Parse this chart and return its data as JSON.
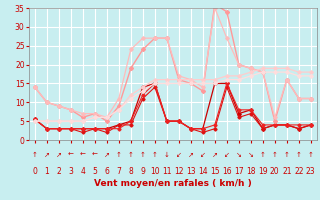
{
  "bg_color": "#c8eef0",
  "grid_color": "#ffffff",
  "xlabel": "Vent moyen/en rafales ( km/h )",
  "xlim": [
    -0.5,
    23.5
  ],
  "ylim": [
    0,
    35
  ],
  "yticks": [
    0,
    5,
    10,
    15,
    20,
    25,
    30,
    35
  ],
  "xticks": [
    0,
    1,
    2,
    3,
    4,
    5,
    6,
    7,
    8,
    9,
    10,
    11,
    12,
    13,
    14,
    15,
    16,
    17,
    18,
    19,
    20,
    21,
    22,
    23
  ],
  "lines": [
    {
      "x": [
        0,
        1,
        2,
        3,
        4,
        5,
        6,
        7,
        8,
        9,
        10,
        11,
        12,
        13,
        14,
        15,
        16,
        17,
        18,
        19,
        20,
        21,
        22,
        23
      ],
      "y": [
        5.5,
        3,
        3,
        3,
        3,
        3,
        3,
        4,
        5,
        14,
        15,
        5,
        5,
        3,
        3,
        15,
        15,
        7,
        8,
        3,
        4,
        4,
        3,
        4
      ],
      "color": "#cc0000",
      "lw": 0.9,
      "marker": "D",
      "ms": 1.8
    },
    {
      "x": [
        0,
        1,
        2,
        3,
        4,
        5,
        6,
        7,
        8,
        9,
        10,
        11,
        12,
        13,
        14,
        15,
        16,
        17,
        18,
        19,
        20,
        21,
        22,
        23
      ],
      "y": [
        5.5,
        3,
        3,
        3,
        2,
        3,
        2,
        4,
        4,
        11,
        14,
        5,
        5,
        3,
        2,
        3,
        14,
        6,
        7,
        3,
        4,
        4,
        3,
        4
      ],
      "color": "#dd1111",
      "lw": 0.8,
      "marker": "D",
      "ms": 1.6
    },
    {
      "x": [
        0,
        1,
        2,
        3,
        4,
        5,
        6,
        7,
        8,
        9,
        10,
        11,
        12,
        13,
        14,
        15,
        16,
        17,
        18,
        19,
        20,
        21,
        22,
        23
      ],
      "y": [
        5.5,
        3,
        3,
        3,
        3,
        3,
        3,
        3,
        5,
        12,
        15,
        5,
        5,
        3,
        3,
        4,
        15,
        8,
        8,
        4,
        4,
        4,
        4,
        4
      ],
      "color": "#ee2222",
      "lw": 0.8,
      "marker": "D",
      "ms": 1.6
    },
    {
      "x": [
        0,
        1,
        2,
        3,
        4,
        5,
        6,
        7,
        8,
        9,
        10,
        11,
        12,
        13,
        14,
        15,
        16,
        17,
        18,
        19,
        20,
        21,
        22,
        23
      ],
      "y": [
        14,
        10,
        9,
        8,
        6,
        7,
        5,
        9,
        19,
        24,
        27,
        27,
        16,
        15,
        13,
        36,
        34,
        20,
        19,
        18,
        5,
        16,
        11,
        11
      ],
      "color": "#ff9999",
      "lw": 1.0,
      "marker": "D",
      "ms": 2.0
    },
    {
      "x": [
        0,
        1,
        2,
        3,
        4,
        5,
        6,
        7,
        8,
        9,
        10,
        11,
        12,
        13,
        14,
        15,
        16,
        17,
        18,
        19,
        20,
        21,
        22,
        23
      ],
      "y": [
        14,
        10,
        9,
        8,
        7,
        7,
        6,
        11,
        24,
        27,
        27,
        27,
        17,
        16,
        14,
        35,
        27,
        20,
        19,
        18,
        6,
        16,
        11,
        11
      ],
      "color": "#ffbbbb",
      "lw": 0.9,
      "marker": "D",
      "ms": 1.8
    },
    {
      "x": [
        0,
        1,
        2,
        3,
        4,
        5,
        6,
        7,
        8,
        9,
        10,
        11,
        12,
        13,
        14,
        15,
        16,
        17,
        18,
        19,
        20,
        21,
        22,
        23
      ],
      "y": [
        5,
        5,
        5,
        5,
        5,
        6,
        6,
        8,
        12,
        14,
        16,
        16,
        16,
        16,
        16,
        16,
        17,
        17,
        18,
        19,
        19,
        19,
        18,
        18
      ],
      "color": "#ffcccc",
      "lw": 0.9,
      "marker": "D",
      "ms": 1.8
    },
    {
      "x": [
        0,
        1,
        2,
        3,
        4,
        5,
        6,
        7,
        8,
        9,
        10,
        11,
        12,
        13,
        14,
        15,
        16,
        17,
        18,
        19,
        20,
        21,
        22,
        23
      ],
      "y": [
        5,
        5,
        5,
        5,
        5,
        6,
        6,
        8,
        11,
        13,
        15,
        15,
        15,
        15,
        15,
        15,
        16,
        16,
        17,
        18,
        18,
        18,
        17,
        17
      ],
      "color": "#ffdddd",
      "lw": 0.9,
      "marker": "D",
      "ms": 1.8
    }
  ],
  "wind_arrows": [
    "↑",
    "↗",
    "↗",
    "←",
    "←",
    "←",
    "↗",
    "↑",
    "↑",
    "↑",
    "↑",
    "↓",
    "↙",
    "↗",
    "↙",
    "↗",
    "↙",
    "↘",
    "↘",
    "↑",
    "↑",
    "↑",
    "↑",
    "↑"
  ],
  "tick_label_color": "#cc0000",
  "axis_label_color": "#cc0000",
  "label_fontsize": 6.5,
  "tick_fontsize": 5.5,
  "arrow_fontsize": 5.0
}
